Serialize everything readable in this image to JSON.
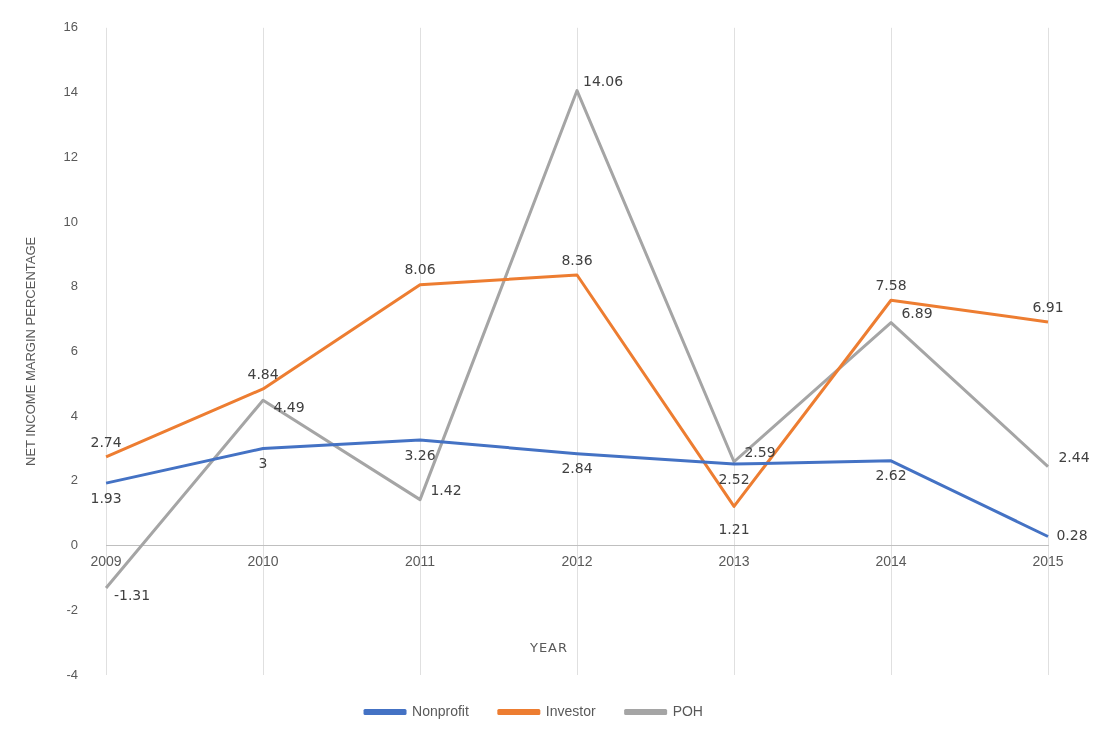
{
  "chart_data": {
    "type": "line",
    "xlabel": "YEAR",
    "ylabel": "NET INCOME MARGIN PERCENTAGE",
    "categories": [
      "2009",
      "2010",
      "2011",
      "2012",
      "2013",
      "2014",
      "2015"
    ],
    "series": [
      {
        "name": "Nonprofit",
        "color": "#4472c4",
        "values": [
          1.93,
          3,
          3.26,
          2.84,
          2.52,
          2.62,
          0.28
        ]
      },
      {
        "name": "Investor",
        "color": "#ed7d31",
        "values": [
          2.74,
          4.84,
          8.06,
          8.36,
          1.21,
          7.58,
          6.91
        ]
      },
      {
        "name": "POH",
        "color": "#a5a5a5",
        "values": [
          -1.31,
          4.49,
          1.42,
          14.06,
          2.59,
          6.89,
          2.44
        ]
      }
    ],
    "ylim": [
      -4,
      16
    ],
    "yticks": [
      -4,
      -2,
      0,
      2,
      4,
      6,
      8,
      10,
      12,
      14,
      16
    ],
    "grid": "x",
    "legend": "bottom",
    "marker": "none",
    "line_style": "solid",
    "data_labels": true
  }
}
